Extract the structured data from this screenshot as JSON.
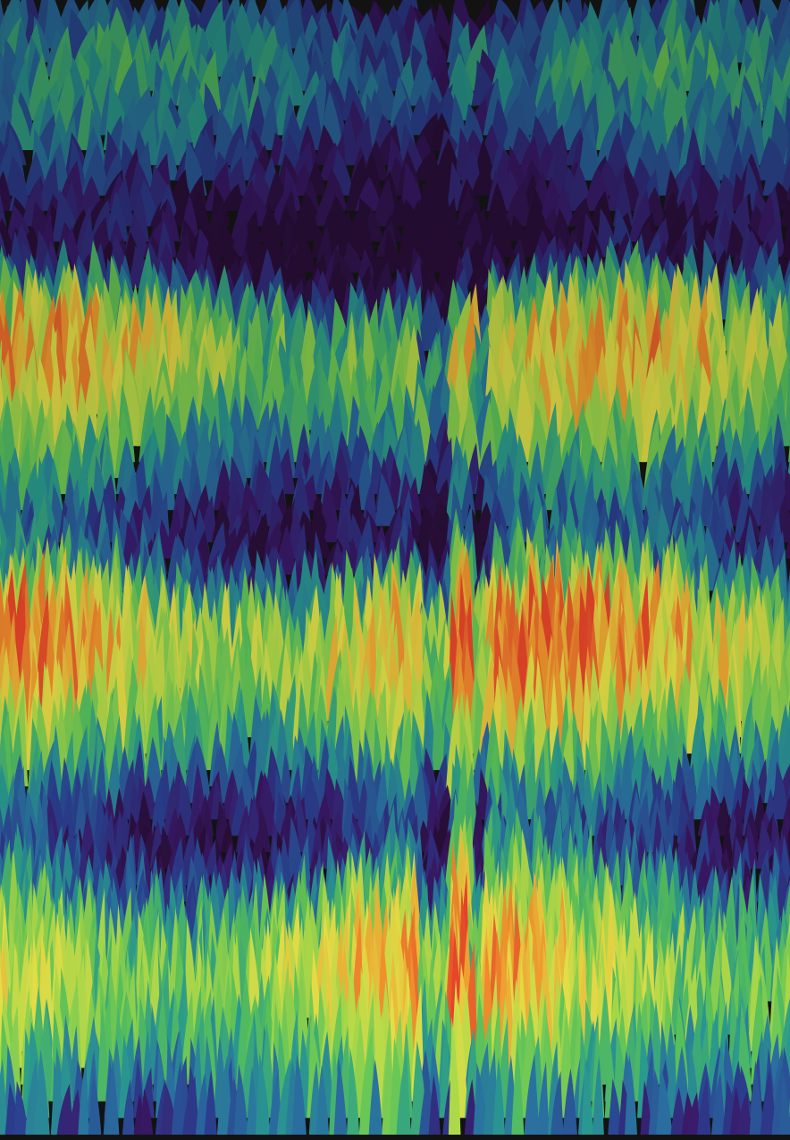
{
  "scene": {
    "kind": "3d-surface-visualization",
    "description_visible_text": "",
    "colors": {
      "background": "#121212",
      "colormap": [
        "#2a0f3a",
        "#3a1a6a",
        "#2b3e8e",
        "#2a6fa0",
        "#2a9a8e",
        "#59c25a",
        "#a6d84a",
        "#e6e048",
        "#f29a2e",
        "#e8452a"
      ]
    }
  }
}
